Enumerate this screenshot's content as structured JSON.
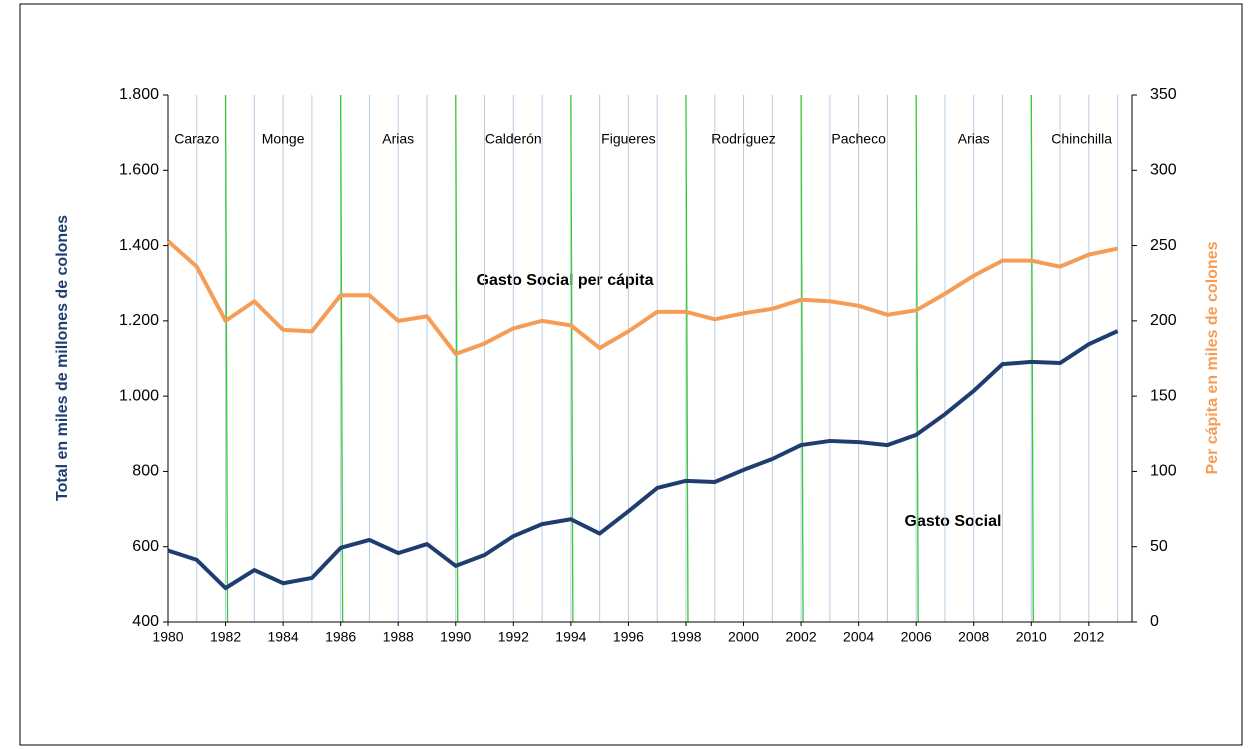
{
  "chart_data": {
    "type": "line",
    "x": [
      1980,
      1981,
      1982,
      1983,
      1984,
      1985,
      1986,
      1987,
      1988,
      1989,
      1990,
      1991,
      1992,
      1993,
      1994,
      1995,
      1996,
      1997,
      1998,
      1999,
      2000,
      2001,
      2002,
      2003,
      2004,
      2005,
      2006,
      2007,
      2008,
      2009,
      2010,
      2011,
      2012,
      2013
    ],
    "series": [
      {
        "name": "Gasto Social",
        "color": "#1f3d6e",
        "axis": "y",
        "values": [
          590,
          565,
          490,
          538,
          503,
          517,
          597,
          618,
          583,
          607,
          549,
          578,
          628,
          660,
          673,
          635,
          694,
          756,
          775,
          772,
          804,
          833,
          870,
          881,
          878,
          870,
          897,
          952,
          1014,
          1085,
          1091,
          1088,
          1138,
          1173
        ]
      },
      {
        "name": "Gasto Social per cápita",
        "color": "#f59d56",
        "axis": "y2",
        "values": [
          253,
          236,
          200,
          213,
          194,
          193,
          217,
          217,
          200,
          203,
          178,
          185,
          195,
          200,
          197,
          182,
          193,
          206,
          206,
          201,
          205,
          208,
          214,
          213,
          210,
          204,
          207,
          218,
          230,
          240,
          240,
          236,
          244,
          248
        ]
      }
    ],
    "ylabel": "Total en miles de millones de colones",
    "y2label": "Per cápita en miles de colones",
    "xlim": [
      1980,
      2013.5
    ],
    "xticks": [
      1980,
      1982,
      1984,
      1986,
      1988,
      1990,
      1992,
      1994,
      1996,
      1998,
      2000,
      2002,
      2004,
      2006,
      2008,
      2010,
      2012
    ],
    "ylim": [
      400,
      1800
    ],
    "yticks": [
      400,
      600,
      800,
      {
        "value": 1000,
        "label": "1.000"
      },
      {
        "value": 1200,
        "label": "1.200"
      },
      {
        "value": 1400,
        "label": "1.400"
      },
      {
        "value": 1600,
        "label": "1.600"
      },
      {
        "value": 1800,
        "label": "1.800"
      }
    ],
    "y2lim": [
      0,
      350
    ],
    "y2ticks": [
      0,
      50,
      100,
      150,
      200,
      250,
      300,
      350
    ],
    "grid": true,
    "grid_color": "#b8cce4",
    "period_color": "#33cc33",
    "period_lines": [
      1982,
      1986,
      1990,
      1994,
      1998,
      2002,
      2006,
      2010
    ],
    "periods": [
      "Carazo",
      "Monge",
      "Arias",
      "Calderón",
      "Figueres",
      "Rodríguez",
      "Pacheco",
      "Arias",
      "Chinchilla"
    ]
  }
}
